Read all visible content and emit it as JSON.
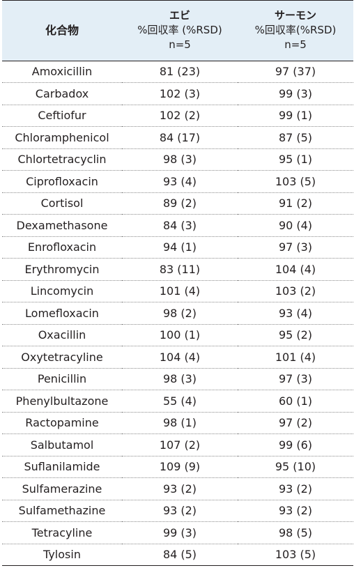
{
  "header": {
    "compound": "化合物",
    "shrimp": {
      "name": "エビ",
      "metric": "%回収率 (%RSD)",
      "n": "n=5"
    },
    "salmon": {
      "name": "サーモン",
      "metric": "%回収率(%RSD)",
      "n": "n=5"
    }
  },
  "rows": [
    {
      "compound": "Amoxicillin",
      "shrimp": "81 (23)",
      "salmon": "97 (37)"
    },
    {
      "compound": "Carbadox",
      "shrimp": "102 (3)",
      "salmon": "99 (3)"
    },
    {
      "compound": "Ceftiofur",
      "shrimp": "102 (2)",
      "salmon": "99 (1)"
    },
    {
      "compound": "Chloramphenicol",
      "shrimp": "84 (17)",
      "salmon": "87 (5)"
    },
    {
      "compound": "Chlortetracyclin",
      "shrimp": "98 (3)",
      "salmon": "95 (1)"
    },
    {
      "compound": "Ciprofloxacin",
      "shrimp": "93 (4)",
      "salmon": "103 (5)"
    },
    {
      "compound": "Cortisol",
      "shrimp": "89 (2)",
      "salmon": "91 (2)"
    },
    {
      "compound": "Dexamethasone",
      "shrimp": "84 (3)",
      "salmon": "90 (4)"
    },
    {
      "compound": "Enrofloxacin",
      "shrimp": "94 (1)",
      "salmon": "97 (3)"
    },
    {
      "compound": "Erythromycin",
      "shrimp": "83 (11)",
      "salmon": "104 (4)"
    },
    {
      "compound": "Lincomycin",
      "shrimp": "101 (4)",
      "salmon": "103 (2)"
    },
    {
      "compound": "Lomefloxacin",
      "shrimp": "98 (2)",
      "salmon": "93 (4)"
    },
    {
      "compound": "Oxacillin",
      "shrimp": "100 (1)",
      "salmon": "95 (2)"
    },
    {
      "compound": "Oxytetracyline",
      "shrimp": "104 (4)",
      "salmon": "101 (4)"
    },
    {
      "compound": "Penicillin",
      "shrimp": "98 (3)",
      "salmon": "97 (3)"
    },
    {
      "compound": "Phenylbultazone",
      "shrimp": "55 (4)",
      "salmon": "60 (1)"
    },
    {
      "compound": "Ractopamine",
      "shrimp": "98 (1)",
      "salmon": "97 (2)"
    },
    {
      "compound": "Salbutamol",
      "shrimp": "107 (2)",
      "salmon": "99 (6)"
    },
    {
      "compound": "Suflanilamide",
      "shrimp": "109 (9)",
      "salmon": "95 (10)"
    },
    {
      "compound": "Sulfamerazine",
      "shrimp": "93 (2)",
      "salmon": "93 (2)"
    },
    {
      "compound": "Sulfamethazine",
      "shrimp": "93 (2)",
      "salmon": "93 (2)"
    },
    {
      "compound": "Tetracyline",
      "shrimp": "99 (3)",
      "salmon": "98 (5)"
    },
    {
      "compound": "Tylosin",
      "shrimp": "84 (5)",
      "salmon": "103 (5)"
    }
  ]
}
